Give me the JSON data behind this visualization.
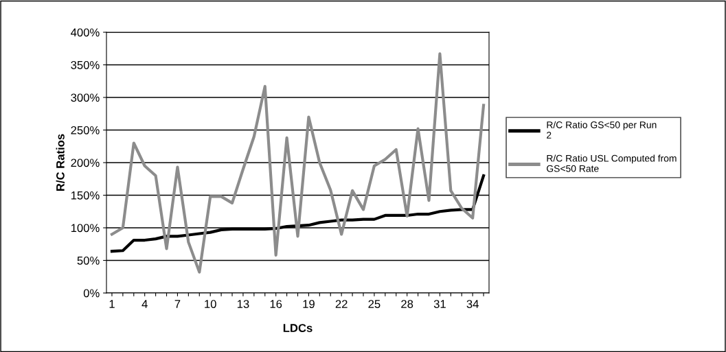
{
  "chart_data": {
    "type": "line",
    "xlabel": "LDCs",
    "ylabel": "R/C Ratios",
    "categories": [
      "1",
      null,
      null,
      "4",
      null,
      null,
      "7",
      null,
      null,
      "10",
      null,
      null,
      "13",
      null,
      null,
      "16",
      null,
      null,
      "19",
      null,
      null,
      "22",
      null,
      null,
      "25",
      null,
      null,
      "28",
      null,
      null,
      "31",
      null,
      null,
      "34",
      null
    ],
    "series": [
      {
        "name": "R/C Ratio GS<50 per Run 2",
        "color": "#000000",
        "values": [
          64,
          65,
          81,
          81,
          83,
          87,
          87,
          89,
          91,
          93,
          97,
          98,
          98,
          98,
          98,
          99,
          102,
          103,
          104,
          108,
          110,
          112,
          112,
          113,
          113,
          119,
          119,
          119,
          121,
          121,
          125,
          127,
          128,
          128,
          180
        ]
      },
      {
        "name": "R/C Ratio USL Computed from GS<50 Rate",
        "color": "#8c8c8c",
        "values": [
          90,
          100,
          230,
          195,
          180,
          68,
          193,
          78,
          32,
          148,
          148,
          138,
          190,
          240,
          317,
          58,
          238,
          87,
          270,
          200,
          158,
          90,
          157,
          128,
          195,
          205,
          220,
          118,
          252,
          142,
          367,
          157,
          130,
          115,
          288
        ]
      }
    ],
    "ylim": [
      0,
      400
    ],
    "yticks": [
      {
        "value": 0,
        "label": "0%"
      },
      {
        "value": 50,
        "label": "50%"
      },
      {
        "value": 100,
        "label": "100%"
      },
      {
        "value": 150,
        "label": "150%"
      },
      {
        "value": 200,
        "label": "200%"
      },
      {
        "value": 250,
        "label": "250%"
      },
      {
        "value": 300,
        "label": "300%"
      },
      {
        "value": 350,
        "label": "350%"
      },
      {
        "value": 400,
        "label": "400%"
      }
    ],
    "grid": "y",
    "legend": "right",
    "marker": "none",
    "line_style": "solid"
  }
}
